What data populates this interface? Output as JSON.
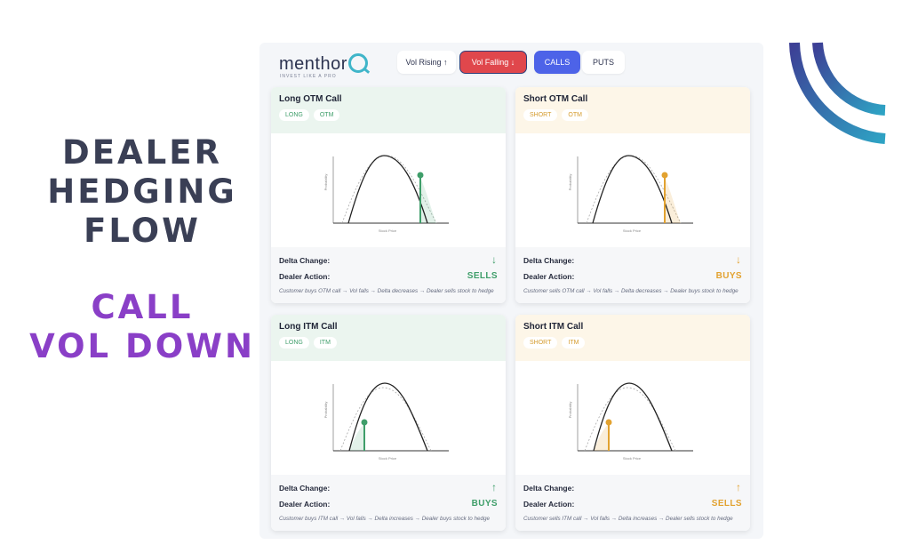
{
  "headline": {
    "line1": "DEALER",
    "line2": "HEDGING",
    "line3": "FLOW",
    "line4": "CALL",
    "line5": "VOL DOWN"
  },
  "brand": {
    "name": "menthor",
    "tagline": "INVEST LIKE A PRO"
  },
  "controls": {
    "vol_rising": "Vol Rising ↑",
    "vol_falling": "Vol Falling ↓",
    "calls": "CALLS",
    "puts": "PUTS"
  },
  "colors": {
    "green": "#3f9e6a",
    "amber": "#e2a230",
    "falling_active": "#e0474c",
    "calls_active": "#4d63e8",
    "headline_dark": "#3a3f55",
    "headline_purple": "#8a3fc7"
  },
  "chart_labels": {
    "ylabel": "Probability",
    "xlabel": "Stock Price"
  },
  "cards": [
    {
      "title": "Long OTM Call",
      "tags": [
        "LONG",
        "OTM"
      ],
      "delta_label": "Delta Change:",
      "action_label": "Dealer Action:",
      "arrow": "↓",
      "action": "SELLS",
      "description": "Customer buys OTM call → Vol falls → Delta decreases → Dealer sells stock to hedge"
    },
    {
      "title": "Short OTM Call",
      "tags": [
        "SHORT",
        "OTM"
      ],
      "delta_label": "Delta Change:",
      "action_label": "Dealer Action:",
      "arrow": "↓",
      "action": "BUYS",
      "description": "Customer sells OTM call → Vol falls → Delta decreases → Dealer buys stock to hedge"
    },
    {
      "title": "Long ITM Call",
      "tags": [
        "LONG",
        "ITM"
      ],
      "delta_label": "Delta Change:",
      "action_label": "Dealer Action:",
      "arrow": "↑",
      "action": "BUYS",
      "description": "Customer buys ITM call → Vol falls → Delta increases → Dealer buys stock to hedge"
    },
    {
      "title": "Short ITM Call",
      "tags": [
        "SHORT",
        "ITM"
      ],
      "delta_label": "Delta Change:",
      "action_label": "Dealer Action:",
      "arrow": "↑",
      "action": "SELLS",
      "description": "Customer sells ITM call → Vol falls → Delta increases → Dealer sells stock to hedge"
    }
  ]
}
